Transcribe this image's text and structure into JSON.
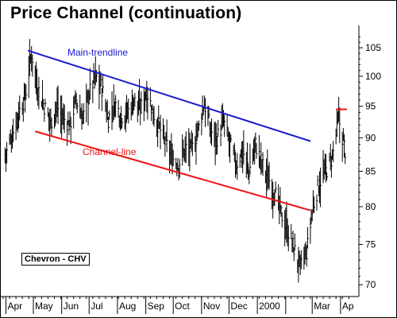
{
  "title": "Price Channel (continuation)",
  "badge": "Chevron - CHV",
  "chart_data": {
    "type": "line",
    "style": "ohlc-bars",
    "ylim": [
      68.6,
      108.2
    ],
    "y_scale": "log",
    "yticks": [
      70,
      75,
      80,
      85,
      90,
      95,
      100,
      105
    ],
    "ytick_labels": [
      "70",
      "75",
      "80",
      "85",
      "90",
      "95",
      "100",
      "105"
    ],
    "x_labels": [
      "Apr",
      "May",
      "Jun",
      "Jul",
      "Aug",
      "Sep",
      "Oct",
      "Nov",
      "Dec",
      "2000",
      "Mar",
      "Ap"
    ],
    "x_start": "1999-03-29",
    "price_series": [
      [
        "1999-04-01",
        87.5
      ],
      [
        "1999-04-08",
        90.5
      ],
      [
        "1999-04-15",
        94.0
      ],
      [
        "1999-04-22",
        96.5
      ],
      [
        "1999-04-29",
        104.0
      ],
      [
        "1999-05-06",
        98.0
      ],
      [
        "1999-05-13",
        95.0
      ],
      [
        "1999-05-20",
        92.5
      ],
      [
        "1999-05-27",
        95.0
      ],
      [
        "1999-06-03",
        93.0
      ],
      [
        "1999-06-10",
        92.0
      ],
      [
        "1999-06-17",
        96.0
      ],
      [
        "1999-06-24",
        93.0
      ],
      [
        "1999-07-01",
        97.0
      ],
      [
        "1999-07-08",
        100.0
      ],
      [
        "1999-07-15",
        98.0
      ],
      [
        "1999-07-22",
        93.0
      ],
      [
        "1999-07-29",
        95.5
      ],
      [
        "1999-08-05",
        93.5
      ],
      [
        "1999-08-12",
        94.0
      ],
      [
        "1999-08-19",
        96.0
      ],
      [
        "1999-08-26",
        94.5
      ],
      [
        "1999-09-02",
        97.5
      ],
      [
        "1999-09-09",
        94.0
      ],
      [
        "1999-09-16",
        91.5
      ],
      [
        "1999-09-23",
        89.0
      ],
      [
        "1999-09-30",
        87.0
      ],
      [
        "1999-10-07",
        86.0
      ],
      [
        "1999-10-14",
        88.5
      ],
      [
        "1999-10-21",
        88.0
      ],
      [
        "1999-10-28",
        91.0
      ],
      [
        "1999-11-04",
        95.5
      ],
      [
        "1999-11-11",
        91.0
      ],
      [
        "1999-11-18",
        90.0
      ],
      [
        "1999-11-25",
        92.5
      ],
      [
        "1999-12-02",
        89.0
      ],
      [
        "1999-12-09",
        86.0
      ],
      [
        "1999-12-16",
        88.0
      ],
      [
        "1999-12-23",
        85.0
      ],
      [
        "1999-12-30",
        89.0
      ],
      [
        "2000-01-06",
        86.0
      ],
      [
        "2000-01-13",
        84.0
      ],
      [
        "2000-01-20",
        82.0
      ],
      [
        "2000-01-27",
        79.0
      ],
      [
        "2000-02-03",
        77.0
      ],
      [
        "2000-02-10",
        74.5
      ],
      [
        "2000-02-17",
        72.0
      ],
      [
        "2000-02-24",
        74.0
      ],
      [
        "2000-03-02",
        80.0
      ],
      [
        "2000-03-09",
        83.5
      ],
      [
        "2000-03-16",
        85.0
      ],
      [
        "2000-03-23",
        87.0
      ],
      [
        "2000-03-30",
        93.0
      ],
      [
        "2000-04-06",
        88.0
      ]
    ],
    "lines": [
      {
        "name": "Main-trendline",
        "color": "#1a1acc",
        "points": [
          [
            "1999-04-25",
            104.5
          ],
          [
            "2000-02-28",
            89.5
          ]
        ]
      },
      {
        "name": "Channel-line",
        "color": "#ee1111",
        "points": [
          [
            "1999-05-03",
            91.0
          ],
          [
            "2000-02-28",
            79.5
          ]
        ]
      },
      {
        "name": "",
        "color": "#ee1111",
        "points": [
          [
            "2000-03-27",
            94.5
          ],
          [
            "2000-04-08",
            94.5
          ]
        ]
      }
    ],
    "annotations": [
      "Main-trendline",
      "Channel-line"
    ]
  }
}
